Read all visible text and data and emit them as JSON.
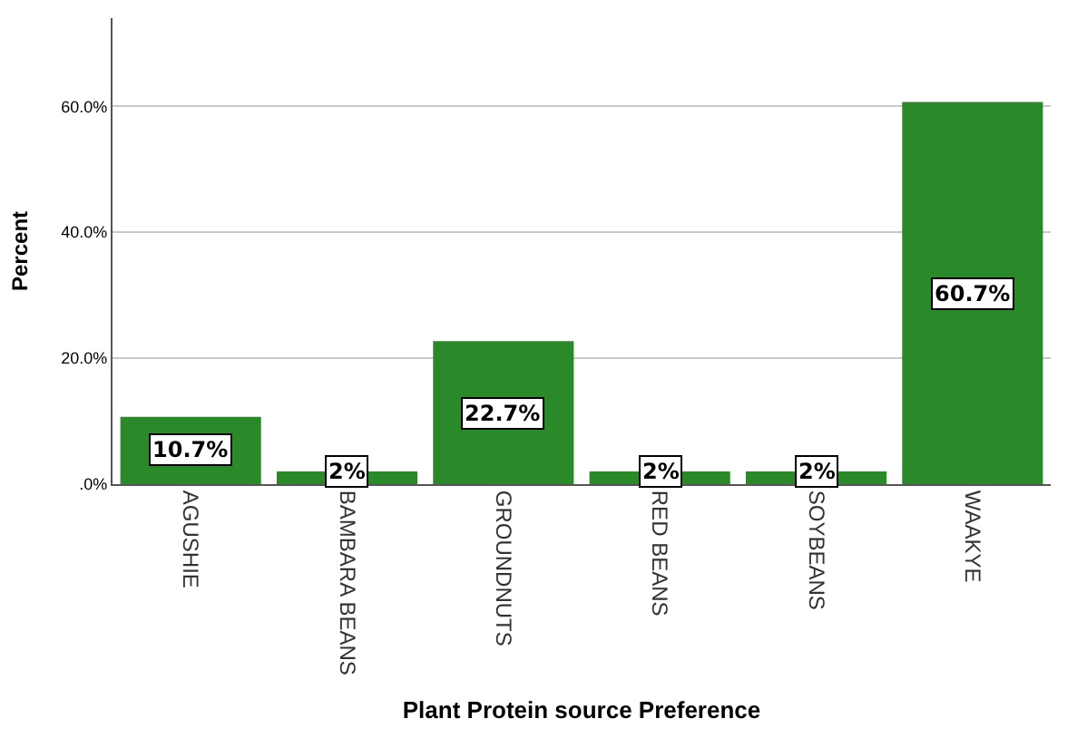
{
  "chart_data": {
    "type": "bar",
    "xlabel": "Plant Protein source Preference",
    "ylabel": "Percent",
    "categories": [
      "AGUSHIE",
      "BAMBARA BEANS",
      "GROUNDNUTS",
      "RED BEANS",
      "SOYBEANS",
      "WAAKYE"
    ],
    "values": [
      10.7,
      2,
      22.7,
      2,
      2,
      60.7
    ],
    "value_labels": [
      "10.7%",
      "2%",
      "22.7%",
      "2%",
      "2%",
      "60.7%"
    ],
    "color": "#2a8a2a",
    "ylim": [
      0,
      74
    ],
    "yticks": [
      {
        "value": 0,
        "label": ".0%"
      },
      {
        "value": 20,
        "label": "20.0%"
      },
      {
        "value": 40,
        "label": "40.0%"
      },
      {
        "value": 60,
        "label": "60.0%"
      }
    ],
    "grid": "y"
  }
}
